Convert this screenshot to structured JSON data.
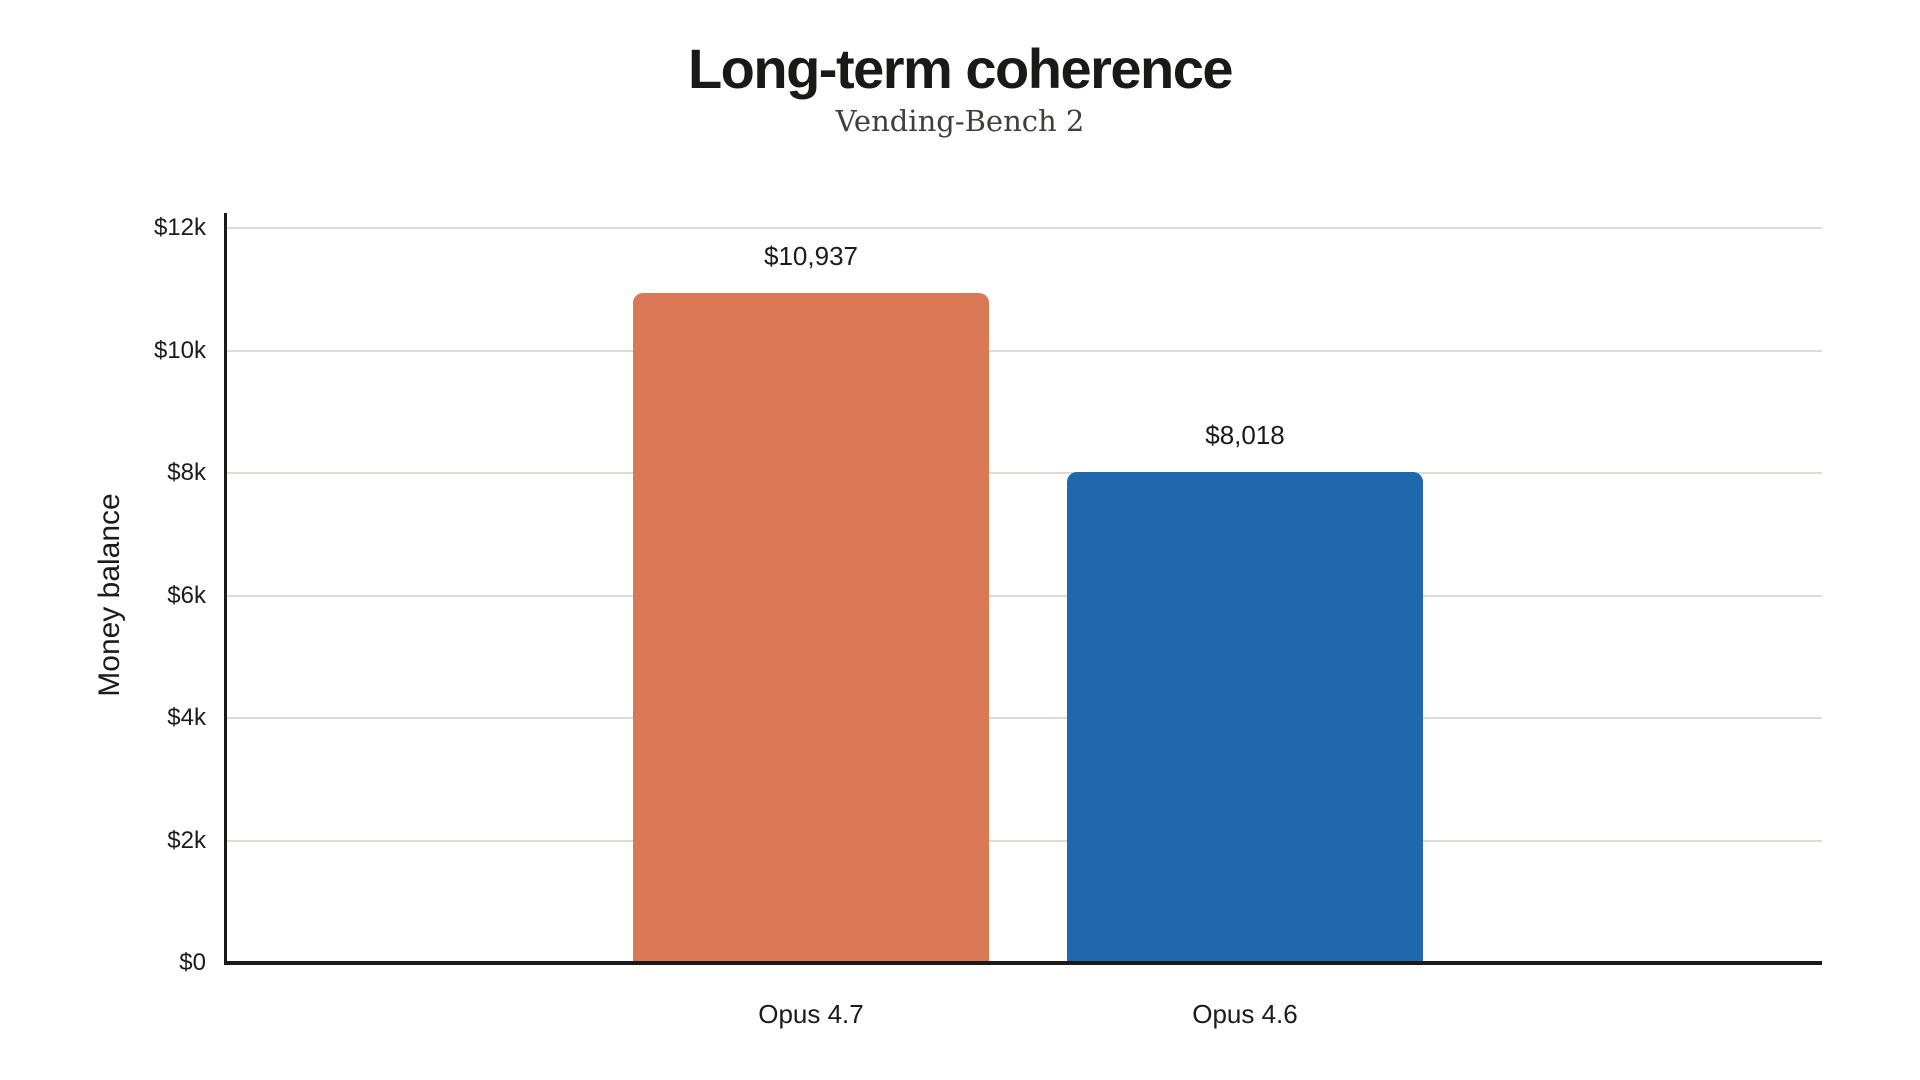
{
  "title": "Long-term coherence",
  "subtitle": "Vending-Bench 2",
  "ylabel": "Money balance",
  "chart_data": {
    "type": "bar",
    "title": "Long-term coherence",
    "subtitle": "Vending-Bench 2",
    "xlabel": "",
    "ylabel": "Money balance",
    "categories": [
      "Opus 4.7",
      "Opus 4.6"
    ],
    "values": [
      10937,
      8018
    ],
    "value_labels": [
      "$10,937",
      "$8,018"
    ],
    "bar_colors": [
      "#D97757",
      "#2068AE"
    ],
    "ylim": [
      0,
      12000
    ],
    "ytick_values": [
      2000,
      4000,
      6000,
      8000,
      10000,
      12000
    ],
    "ytick_labels": [
      "$2k",
      "$4k",
      "$6k",
      "$8k",
      "$10k",
      "$12k"
    ],
    "zero_tick_label": "$0",
    "grid": "horizontal",
    "legend": "none"
  },
  "colors": {
    "background": "#ffffff",
    "axis": "#1a1a1a",
    "gridline": "#dcdcd7",
    "text": "#1b1b19",
    "subtitle_text": "#3f3f3c",
    "bar_opus_4_7": "#D97757",
    "bar_opus_4_6": "#2068AE"
  }
}
